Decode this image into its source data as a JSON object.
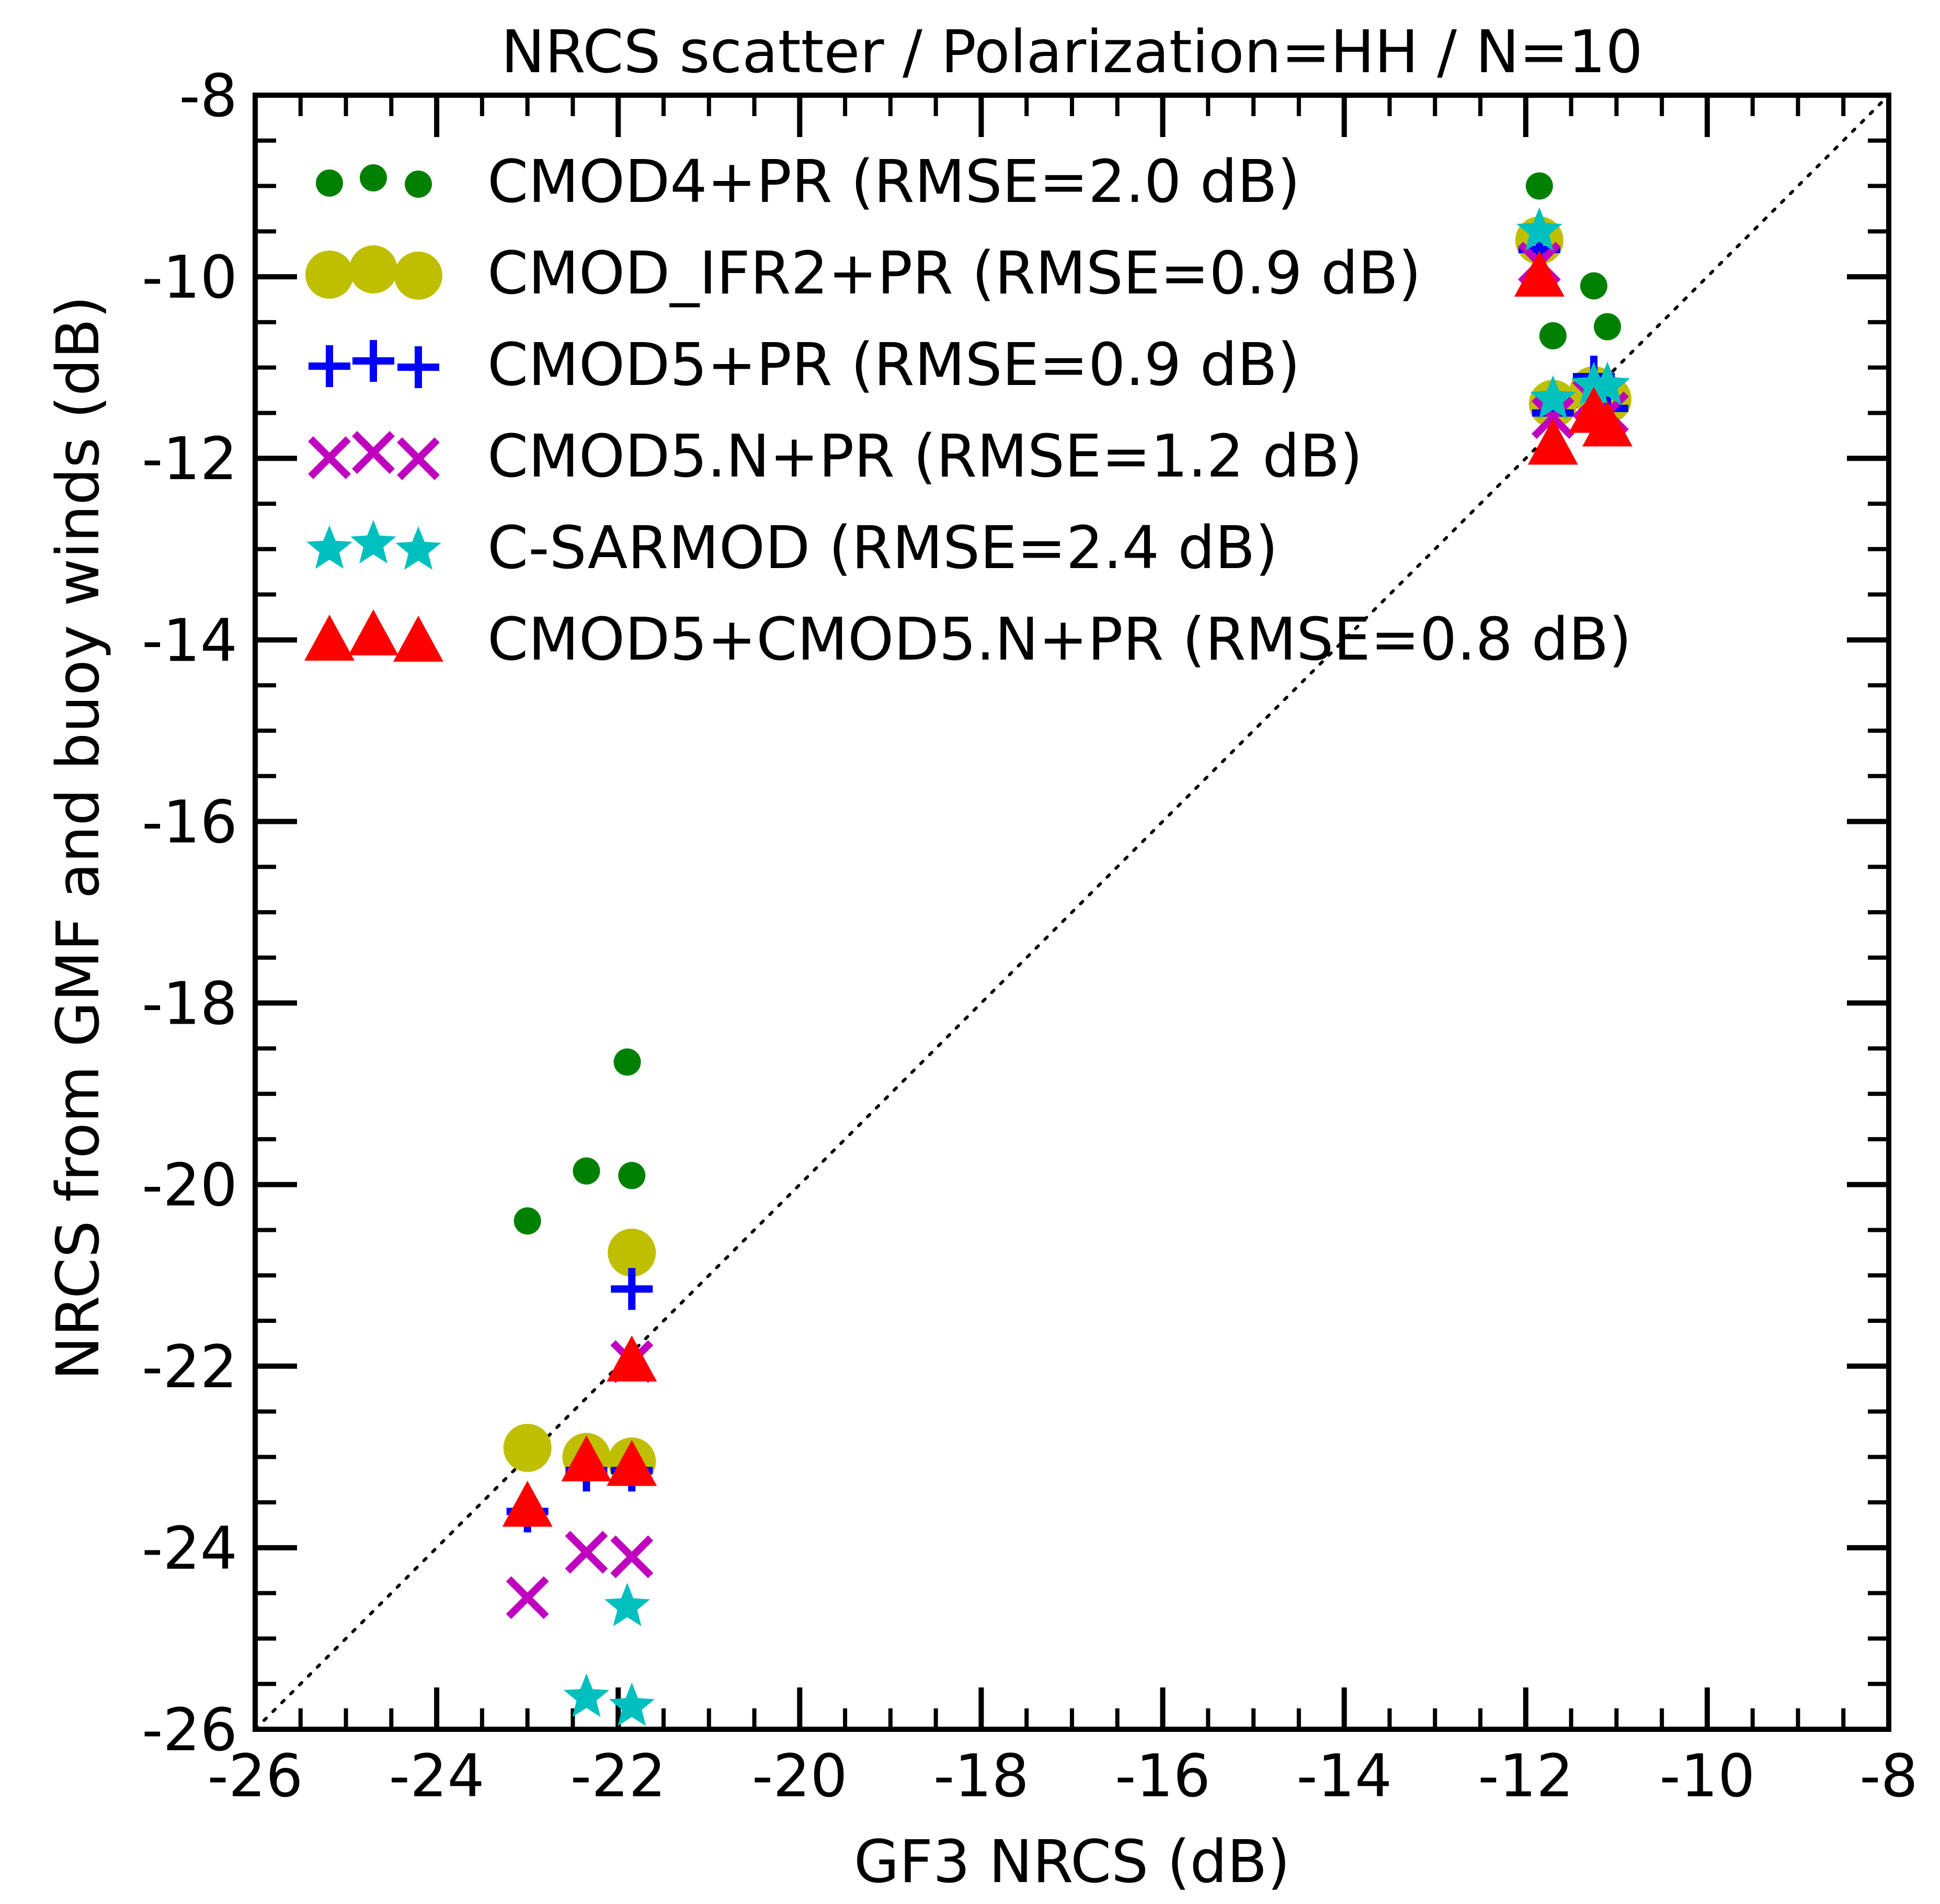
{
  "chart_data": {
    "type": "scatter",
    "title": "NRCS scatter / Polarization=HH / N=10",
    "xlabel": "GF3 NRCS (dB)",
    "ylabel": "NRCS from GMF and buoy winds (dB)",
    "xlim": [
      -26,
      -8
    ],
    "ylim": [
      -26,
      -8
    ],
    "x_ticks": [
      -26,
      -24,
      -22,
      -20,
      -18,
      -16,
      -14,
      -12,
      -10,
      -8
    ],
    "y_ticks": [
      -26,
      -24,
      -22,
      -20,
      -18,
      -16,
      -14,
      -12,
      -10,
      -8
    ],
    "x_tick_labels": [
      "-26",
      "-24",
      "-22",
      "-20",
      "-18",
      "-16",
      "-14",
      "-12",
      "-10",
      "-8"
    ],
    "y_tick_labels": [
      "-26",
      "-24",
      "-22",
      "-20",
      "-18",
      "-16",
      "-14",
      "-12",
      "-10",
      "-8"
    ],
    "minor_step": 0.5,
    "reference_line": "y = x (dotted)",
    "legend_position": "top-left",
    "series": [
      {
        "name": "CMOD4+PR (RMSE=2.0 dB)",
        "marker": "dot",
        "color": "#008000",
        "x": [
          -23.0,
          -22.35,
          -21.9,
          -21.85,
          -11.85,
          -11.7,
          -11.25,
          -11.1
        ],
        "y": [
          -20.4,
          -19.85,
          -18.65,
          -19.9,
          -9.0,
          -10.65,
          -10.1,
          -10.55
        ]
      },
      {
        "name": "CMOD_IFR2+PR (RMSE=0.9 dB)",
        "marker": "circle",
        "color": "#bfbf00",
        "x": [
          -23.0,
          -22.35,
          -21.85,
          -21.85,
          -11.85,
          -11.7,
          -11.25,
          -11.1
        ],
        "y": [
          -22.9,
          -23.0,
          -20.75,
          -23.05,
          -9.6,
          -11.4,
          -11.25,
          -11.35
        ]
      },
      {
        "name": "CMOD5+PR (RMSE=0.9 dB)",
        "marker": "plus",
        "color": "#0000ff",
        "x": [
          -23.0,
          -22.35,
          -21.85,
          -21.85,
          -11.85,
          -11.7,
          -11.25,
          -11.1
        ],
        "y": [
          -23.6,
          -23.15,
          -21.15,
          -23.15,
          -9.7,
          -11.5,
          -11.1,
          -11.45
        ]
      },
      {
        "name": "CMOD5.N+PR (RMSE=1.2 dB)",
        "marker": "cross",
        "color": "#bf00bf",
        "x": [
          -23.0,
          -22.35,
          -21.85,
          -21.85,
          -11.85,
          -11.7,
          -11.25,
          -11.1
        ],
        "y": [
          -24.55,
          -24.05,
          -21.95,
          -24.1,
          -9.85,
          -11.55,
          -11.35,
          -11.5
        ]
      },
      {
        "name": "C-SARMOD (RMSE=2.4 dB)",
        "marker": "star",
        "color": "#00bfbf",
        "x": [
          -22.35,
          -21.9,
          -21.85,
          -11.85,
          -11.7,
          -11.25,
          -11.1
        ],
        "y": [
          -25.65,
          -24.65,
          -25.75,
          -9.5,
          -11.35,
          -11.2,
          -11.2
        ]
      },
      {
        "name": "CMOD5+CMOD5.N+PR (RMSE=0.8 dB)",
        "marker": "triangle",
        "color": "#ff0000",
        "x": [
          -23.0,
          -22.35,
          -21.85,
          -21.85,
          -11.85,
          -11.7,
          -11.25,
          -11.1
        ],
        "y": [
          -23.55,
          -23.05,
          -21.95,
          -23.1,
          -10.0,
          -11.85,
          -11.5,
          -11.65
        ]
      }
    ]
  }
}
